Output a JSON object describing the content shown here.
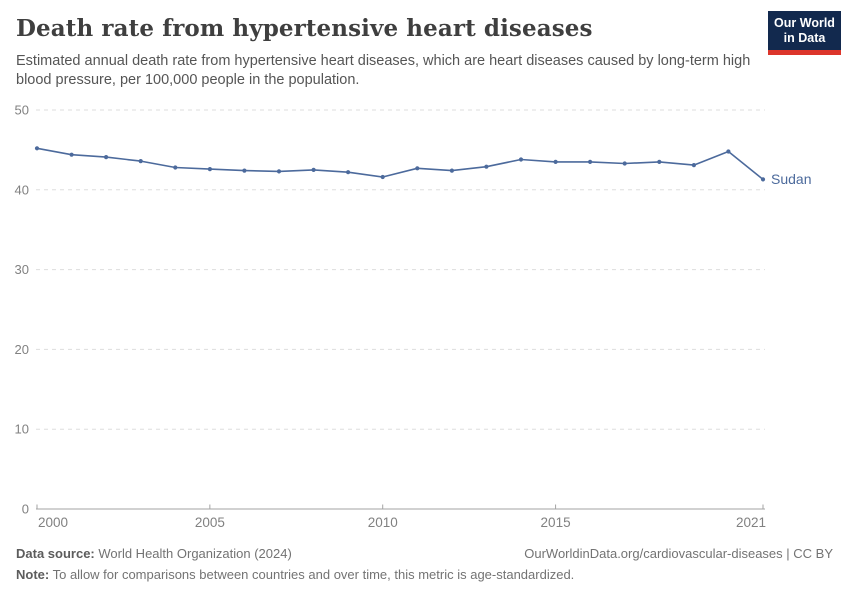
{
  "header": {
    "title": "Death rate from hypertensive heart diseases",
    "subtitle": "Estimated annual death rate from hypertensive heart diseases, which are heart diseases caused by long-term high blood pressure, per 100,000 people in the population."
  },
  "logo": {
    "line1": "Our World",
    "line2": "in Data"
  },
  "chart_data": {
    "type": "line",
    "title": "Death rate from hypertensive heart diseases",
    "xlabel": "",
    "ylabel": "",
    "xlim": [
      2000,
      2021
    ],
    "ylim": [
      0,
      50
    ],
    "x_ticks": [
      2000,
      2005,
      2010,
      2015,
      2021
    ],
    "y_ticks": [
      0,
      10,
      20,
      30,
      40,
      50
    ],
    "grid": "dashed-horizontal",
    "legend_position": "end-of-line-label",
    "x": [
      2000,
      2001,
      2002,
      2003,
      2004,
      2005,
      2006,
      2007,
      2008,
      2009,
      2010,
      2011,
      2012,
      2013,
      2014,
      2015,
      2016,
      2017,
      2018,
      2019,
      2020,
      2021
    ],
    "series": [
      {
        "name": "Sudan",
        "color": "#4C6A9C",
        "values": [
          45.2,
          44.4,
          44.1,
          43.6,
          42.8,
          42.6,
          42.4,
          42.3,
          42.5,
          42.2,
          41.6,
          42.7,
          42.4,
          42.9,
          43.8,
          43.5,
          43.5,
          43.3,
          43.5,
          43.1,
          44.8,
          41.3
        ]
      }
    ]
  },
  "footer": {
    "datasource_label": "Data source:",
    "datasource_value": " World Health Organization (2024)",
    "link": "OurWorldinData.org/cardiovascular-diseases | CC BY",
    "note_label": "Note:",
    "note_value": " To allow for comparisons between countries and over time, this metric is age-standardized."
  },
  "colors": {
    "line": "#4C6A9C",
    "grid": "#dddddd",
    "axis": "#a3a3a3",
    "tick_label": "#818181",
    "title": "#3f3f3f",
    "subtitle": "#555555",
    "footer": "#737373",
    "logo_bg": "#12294e",
    "logo_accent": "#dc352b"
  }
}
